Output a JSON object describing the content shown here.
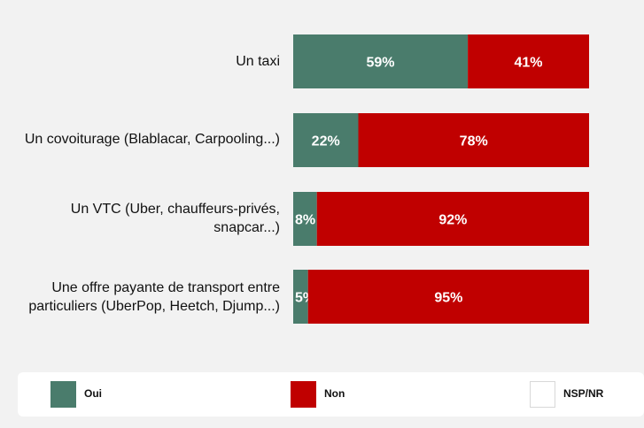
{
  "chart_data": {
    "type": "bar",
    "orientation": "horizontal",
    "stacked": true,
    "categories": [
      "Un taxi",
      "Un covoiturage (Blablacar, Carpooling...)",
      "Un VTC (Uber, chauffeurs-privés, snapcar...)",
      "Une offre payante de transport entre particuliers (UberPop, Heetch, Djump...)"
    ],
    "category_lines": [
      [
        "Un taxi"
      ],
      [
        "Un covoiturage (Blablacar, Carpooling...)"
      ],
      [
        "Un VTC (Uber, chauffeurs-privés,",
        "snapcar...)"
      ],
      [
        "Une offre payante de transport entre",
        "particuliers (UberPop, Heetch, Djump...)"
      ]
    ],
    "series": [
      {
        "name": "Oui",
        "values": [
          59,
          22,
          8,
          5
        ],
        "labels": [
          "59%",
          "22%",
          "8%",
          "5%"
        ],
        "color": "#4a7c6c"
      },
      {
        "name": "Non",
        "values": [
          41,
          78,
          92,
          95
        ],
        "labels": [
          "41%",
          "78%",
          "92%",
          "95%"
        ],
        "color": "#c00000"
      },
      {
        "name": "NSP/NR",
        "values": [
          0,
          0,
          0,
          0
        ],
        "labels": [
          "",
          "",
          "",
          ""
        ],
        "color": "#ffffff"
      }
    ],
    "xlim": [
      0,
      100
    ],
    "grid": false,
    "legend_position": "bottom",
    "title": "",
    "xlabel": "",
    "ylabel": ""
  },
  "legend": {
    "items": [
      {
        "label": "Oui",
        "color": "#4a7c6c"
      },
      {
        "label": "Non",
        "color": "#c00000"
      },
      {
        "label": "NSP/NR",
        "color": "#ffffff"
      }
    ]
  }
}
